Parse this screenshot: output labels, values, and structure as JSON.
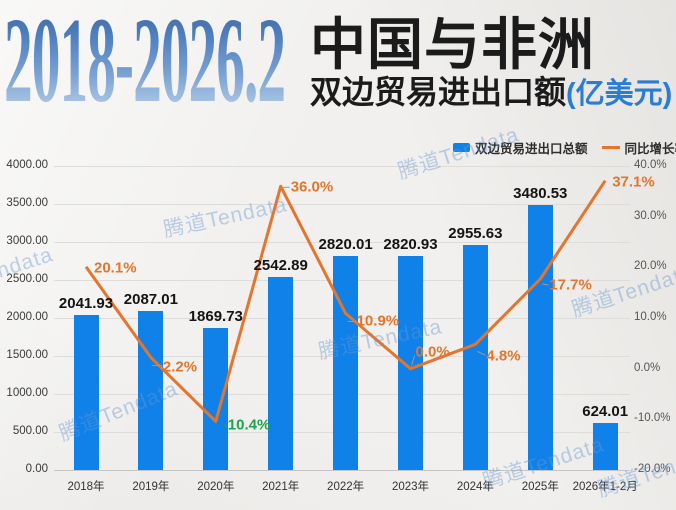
{
  "header": {
    "year_range": "2018-2026.2",
    "title_main": "中国与非洲",
    "title_sub": "双边贸易进出口额",
    "title_unit": "(亿美元)"
  },
  "legend": {
    "bar_label": "双边贸易进出口总额",
    "line_label": "同比增长率"
  },
  "watermark_text": "腾道Tendata",
  "colors": {
    "bar": "#1081e8",
    "line": "#e3752c",
    "growth_positive_label": "#e2762b",
    "growth_negative_label": "#1fa24e",
    "unit_blue": "#2a7dd2"
  },
  "chart_data": {
    "type": "combo_bar_line",
    "title": "2018-2026.2 中国与非洲双边贸易进出口额(亿美元)",
    "categories": [
      "2018年",
      "2019年",
      "2020年",
      "2021年",
      "2022年",
      "2023年",
      "2024年",
      "2025年",
      "2026年1-2月"
    ],
    "series": [
      {
        "name": "双边贸易进出口总额",
        "type": "bar",
        "axis": "left",
        "color": "#1081e8",
        "values": [
          2041.93,
          2087.01,
          1869.73,
          2542.89,
          2820.01,
          2820.93,
          2955.63,
          3480.53,
          624.01
        ]
      },
      {
        "name": "同比增长率",
        "type": "line",
        "axis": "right",
        "color": "#e3752c",
        "values": [
          20.1,
          2.2,
          -10.4,
          36.0,
          10.9,
          0.0,
          4.8,
          17.7,
          37.1
        ]
      }
    ],
    "value_labels": [
      "2041.93",
      "2087.01",
      "1869.73",
      "2542.89",
      "2820.01",
      "2820.93",
      "2955.63",
      "3480.53",
      "624.01"
    ],
    "growth_labels": [
      "20.1%",
      "2.2%",
      "-10.4%",
      "36.0%",
      "10.9%",
      "0.0%",
      "4.8%",
      "17.7%",
      "37.1%"
    ],
    "left_axis": {
      "min": 0,
      "max": 4000,
      "ticks": [
        "4000.00",
        "3500.00",
        "3000.00",
        "2500.00",
        "2000.00",
        "1500.00",
        "1000.00",
        "500.00",
        "0.00"
      ]
    },
    "right_axis": {
      "min": -20,
      "max": 40,
      "ticks": [
        "40.0%",
        "30.0%",
        "20.0%",
        "10.0%",
        "0.0%",
        "-10.0%",
        "-20.0%"
      ]
    },
    "grid": "horizontal",
    "legend_position": "top-right"
  }
}
